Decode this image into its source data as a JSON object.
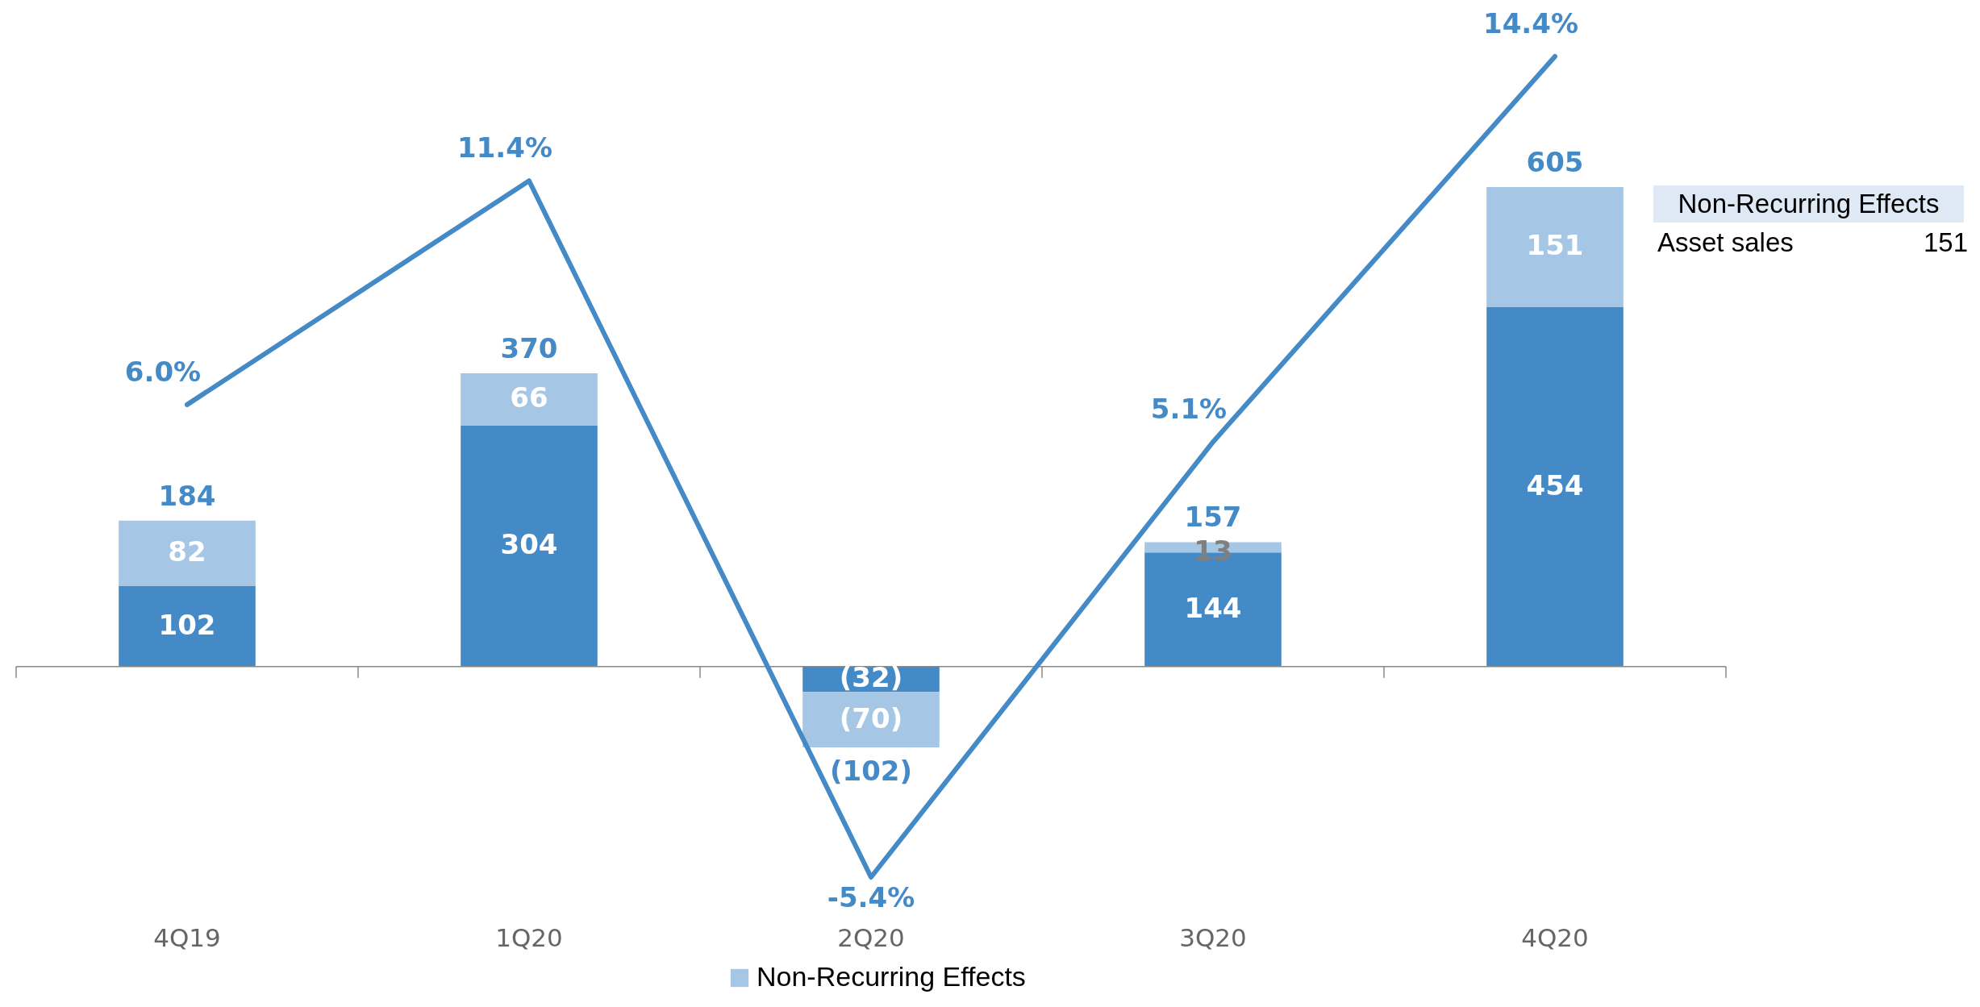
{
  "chart_data": {
    "type": "bar",
    "stacked": true,
    "categories": [
      "4Q19",
      "1Q20",
      "2Q20",
      "3Q20",
      "4Q20"
    ],
    "tick_labels": "x",
    "legend": "bottom",
    "series": [
      {
        "color": "#448ac6",
        "values": [
          102,
          304,
          -32,
          144,
          454
        ],
        "value_labels": [
          "102",
          "304",
          "(32)",
          "144",
          "454"
        ]
      },
      {
        "name": "Non-Recurring Effects",
        "color": "#a5c6e4",
        "values": [
          82,
          66,
          -70,
          13,
          151
        ],
        "value_labels": [
          "82",
          "66",
          "(70)",
          "13",
          "151"
        ]
      },
      {
        "type": "line",
        "axis": "y2",
        "color": "#448ac6",
        "values": [
          6.0,
          11.4,
          -5.4,
          5.1,
          14.4
        ],
        "value_labels": [
          "6.0%",
          "11.4%",
          "-5.4%",
          "5.1%",
          "14.4%"
        ]
      }
    ],
    "totals": [
      "184",
      "370",
      "(102)",
      "157",
      "605"
    ],
    "annotations": [
      "Non-Recurring Effects",
      "Asset sales",
      "151"
    ]
  }
}
